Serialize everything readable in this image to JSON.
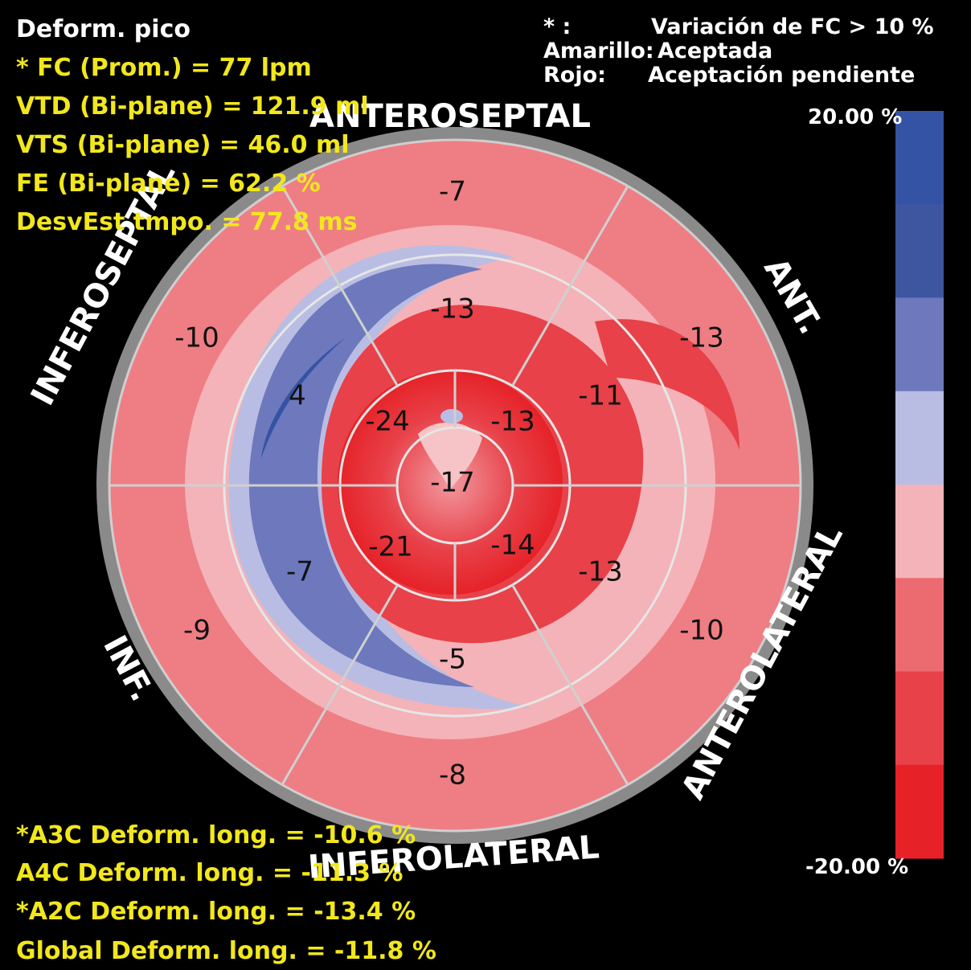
{
  "header": {
    "title": "Deform. pico",
    "hr": "* FC (Prom.) = 77 lpm",
    "edv": "VTD (Bi-plane) = 121.9 ml",
    "esv": "VTS (Bi-plane) = 46.0 ml",
    "ef": "FE (Bi-plane) = 62.2 %",
    "sd": "DesvEst tmpo. = 77.8 ms"
  },
  "legend_text": {
    "star_key": "* :",
    "star_value": "Variación de FC > 10 %",
    "yellow_key": "Amarillo:",
    "yellow_value": "Aceptada",
    "red_key": "Rojo:",
    "red_value": "Aceptación pendiente"
  },
  "walls": {
    "anteroseptal": "ANTEROSEPTAL",
    "ant": "ANT.",
    "anterolateral": "ANTEROLATERAL",
    "inferolateral": "INFEROLATERAL",
    "inf": "INF.",
    "inferoseptal": "INFEROSEPTAL"
  },
  "colorbar": {
    "max_label": "20.00 %",
    "min_label": "-20.00 %",
    "colors": [
      "#3553a5",
      "#3e56a0",
      "#6d79bc",
      "#b9bde3",
      "#f4b3b8",
      "#ec6b70",
      "#e84149",
      "#e62228"
    ]
  },
  "footer": {
    "a3c": "*A3C Deform. long. = -10.6 %",
    "a4c": "A4C Deform. long. = -11.3 %",
    "a2c": "*A2C Deform. long. = -13.4 %",
    "global": "Global Deform. long. = -11.8 %"
  },
  "chart_data": {
    "type": "bullseye",
    "segments": {
      "basal": {
        "anteroseptal": "-7",
        "ant": "-13",
        "anterolateral": "-10",
        "inferolateral": "-8",
        "inf": "-9",
        "inferoseptal": "-10"
      },
      "mid": {
        "anteroseptal": "-13",
        "ant": "-11",
        "anterolateral": "-13",
        "inferolateral": "-5",
        "inf": "-7",
        "inferoseptal": "4"
      },
      "apical": {
        "anterior": "-13",
        "lateral": "-14",
        "inferior": "-21",
        "septal": "-24"
      },
      "apex": "-17"
    }
  }
}
